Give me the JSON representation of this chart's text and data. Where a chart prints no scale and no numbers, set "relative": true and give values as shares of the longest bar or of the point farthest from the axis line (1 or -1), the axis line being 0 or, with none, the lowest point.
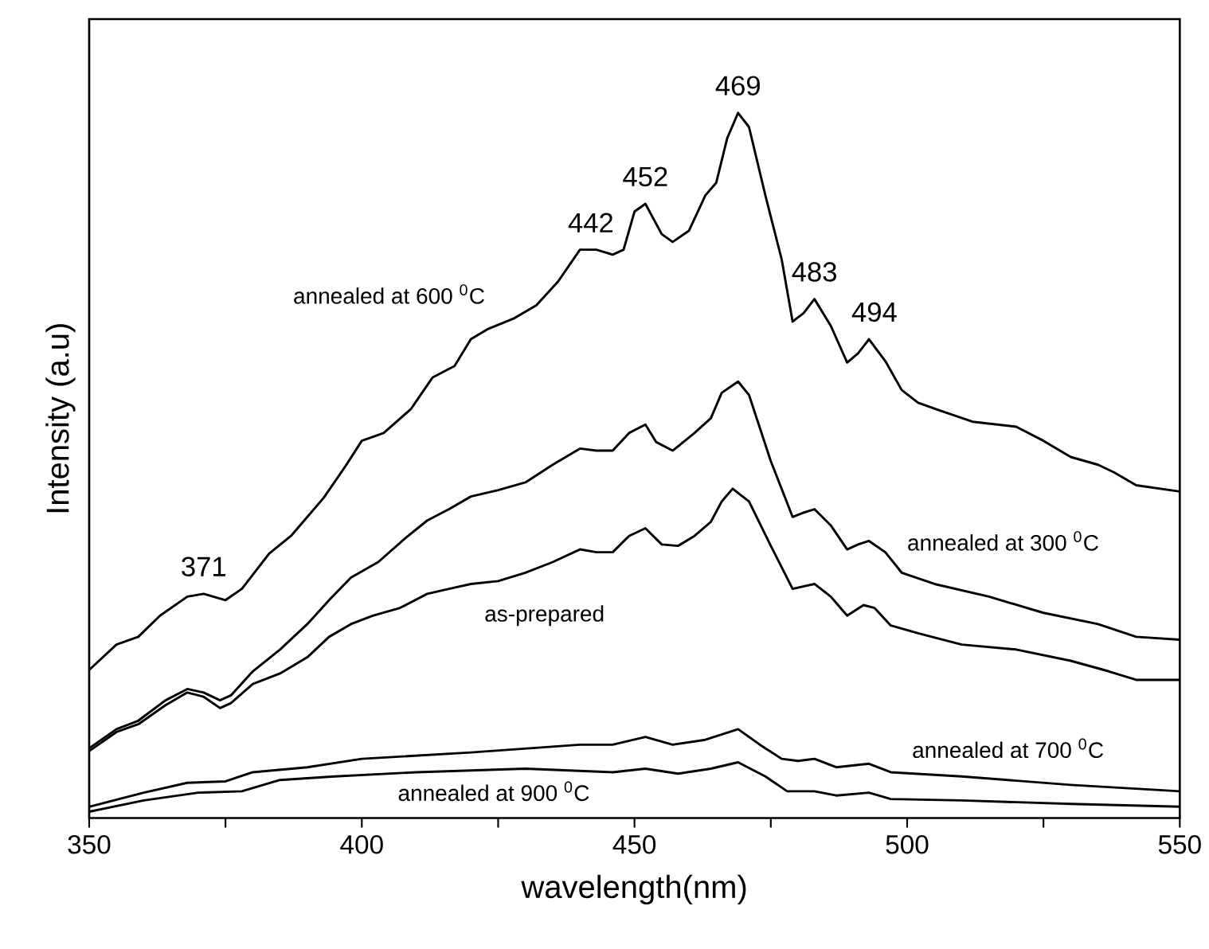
{
  "chart_data": {
    "type": "line",
    "relative": true,
    "xlabel": "wavelength(nm)",
    "ylabel": "Intensity (a.u)",
    "xlim": [
      350,
      550
    ],
    "xticks": [
      350,
      {
        "value": 375,
        "label": null
      },
      400,
      {
        "value": 425,
        "label": null
      },
      450,
      {
        "value": 475,
        "label": null
      },
      500,
      {
        "value": 525,
        "label": null
      },
      550
    ],
    "tick_labels": "x",
    "grid": false,
    "marker": "none",
    "line_style": "solid",
    "series": [
      {
        "name": "annealed at 600 $^{0}$C",
        "color": "#000000",
        "x": [
          350,
          355,
          359,
          363,
          368,
          371,
          375,
          378,
          383,
          387,
          393,
          397,
          400,
          404,
          409,
          413,
          417,
          420,
          423,
          428,
          432,
          436,
          440,
          443,
          446,
          448,
          450,
          452,
          455,
          457,
          460,
          463,
          465,
          467,
          469,
          471,
          474,
          477,
          479,
          481,
          483,
          486,
          489,
          491,
          493,
          496,
          499,
          502,
          506,
          512,
          520,
          525,
          530,
          535,
          538,
          542,
          550
        ],
        "values": [
          0.21,
          0.246,
          0.257,
          0.287,
          0.314,
          0.318,
          0.309,
          0.325,
          0.375,
          0.4,
          0.454,
          0.499,
          0.535,
          0.546,
          0.58,
          0.625,
          0.641,
          0.679,
          0.693,
          0.709,
          0.727,
          0.761,
          0.806,
          0.806,
          0.799,
          0.806,
          0.86,
          0.871,
          0.828,
          0.817,
          0.833,
          0.883,
          0.901,
          0.964,
          1.0,
          0.98,
          0.883,
          0.792,
          0.704,
          0.716,
          0.736,
          0.698,
          0.646,
          0.659,
          0.679,
          0.648,
          0.607,
          0.589,
          0.578,
          0.562,
          0.555,
          0.535,
          0.512,
          0.501,
          0.49,
          0.472,
          0.463
        ]
      },
      {
        "name": "annealed at 300 $^{0}$C",
        "color": "#000000",
        "x": [
          350,
          355,
          359,
          364,
          368,
          371,
          374,
          376,
          380,
          385,
          390,
          394,
          398,
          403,
          408,
          412,
          416,
          420,
          425,
          430,
          435,
          440,
          443,
          446,
          449,
          452,
          454,
          457,
          461,
          464,
          466,
          469,
          471,
          475,
          479,
          481,
          483,
          486,
          489,
          491,
          493,
          496,
          499,
          505,
          515,
          525,
          535,
          542,
          550
        ],
        "values": [
          0.099,
          0.126,
          0.138,
          0.167,
          0.183,
          0.178,
          0.167,
          0.174,
          0.208,
          0.239,
          0.275,
          0.309,
          0.341,
          0.363,
          0.397,
          0.422,
          0.438,
          0.456,
          0.465,
          0.476,
          0.501,
          0.524,
          0.521,
          0.521,
          0.546,
          0.558,
          0.533,
          0.521,
          0.546,
          0.567,
          0.603,
          0.619,
          0.6,
          0.506,
          0.427,
          0.433,
          0.438,
          0.415,
          0.381,
          0.388,
          0.393,
          0.377,
          0.348,
          0.332,
          0.314,
          0.291,
          0.275,
          0.257,
          0.253
        ]
      },
      {
        "name": "as-prepared",
        "color": "#000000",
        "x": [
          350,
          355,
          359,
          364,
          368,
          371,
          374,
          376,
          380,
          385,
          390,
          394,
          398,
          402,
          407,
          412,
          416,
          420,
          425,
          430,
          435,
          440,
          443,
          446,
          449,
          452,
          455,
          458,
          461,
          464,
          466,
          468,
          471,
          475,
          479,
          483,
          486,
          489,
          492,
          494,
          497,
          502,
          510,
          520,
          530,
          537,
          542,
          550
        ],
        "values": [
          0.095,
          0.122,
          0.133,
          0.16,
          0.178,
          0.172,
          0.156,
          0.163,
          0.19,
          0.205,
          0.228,
          0.257,
          0.275,
          0.287,
          0.298,
          0.318,
          0.325,
          0.332,
          0.336,
          0.348,
          0.363,
          0.381,
          0.377,
          0.377,
          0.4,
          0.411,
          0.388,
          0.386,
          0.4,
          0.42,
          0.449,
          0.467,
          0.449,
          0.386,
          0.325,
          0.332,
          0.314,
          0.287,
          0.302,
          0.298,
          0.273,
          0.262,
          0.246,
          0.239,
          0.223,
          0.208,
          0.196,
          0.196
        ]
      },
      {
        "name": "annealed at 700 $^{0}$C",
        "color": "#000000",
        "x": [
          350,
          360,
          368,
          375,
          380,
          390,
          400,
          420,
          440,
          446,
          452,
          457,
          463,
          469,
          473,
          477,
          480,
          483,
          487,
          493,
          497,
          510,
          530,
          550
        ],
        "values": [
          0.016,
          0.036,
          0.05,
          0.052,
          0.065,
          0.072,
          0.084,
          0.093,
          0.104,
          0.104,
          0.115,
          0.104,
          0.111,
          0.126,
          0.104,
          0.084,
          0.081,
          0.084,
          0.072,
          0.077,
          0.065,
          0.059,
          0.047,
          0.038
        ]
      },
      {
        "name": "annealed at 900 $^{0}$C",
        "color": "#000000",
        "x": [
          350,
          360,
          370,
          378,
          385,
          395,
          410,
          430,
          446,
          452,
          458,
          464,
          469,
          474,
          478,
          483,
          487,
          493,
          497,
          510,
          530,
          550
        ],
        "values": [
          0.009,
          0.025,
          0.036,
          0.038,
          0.054,
          0.059,
          0.065,
          0.07,
          0.065,
          0.07,
          0.063,
          0.07,
          0.079,
          0.059,
          0.038,
          0.038,
          0.032,
          0.036,
          0.027,
          0.025,
          0.02,
          0.016
        ]
      }
    ],
    "annotations": [
      {
        "text": "371",
        "x": 371,
        "y": 0.318
      },
      {
        "text": "442",
        "x": 442,
        "y": 0.806
      },
      {
        "text": "452",
        "x": 452,
        "y": 0.871
      },
      {
        "text": "469",
        "x": 469,
        "y": 1.0
      },
      {
        "text": "483",
        "x": 483,
        "y": 0.736
      },
      {
        "text": "494",
        "x": 494,
        "y": 0.679
      }
    ]
  }
}
